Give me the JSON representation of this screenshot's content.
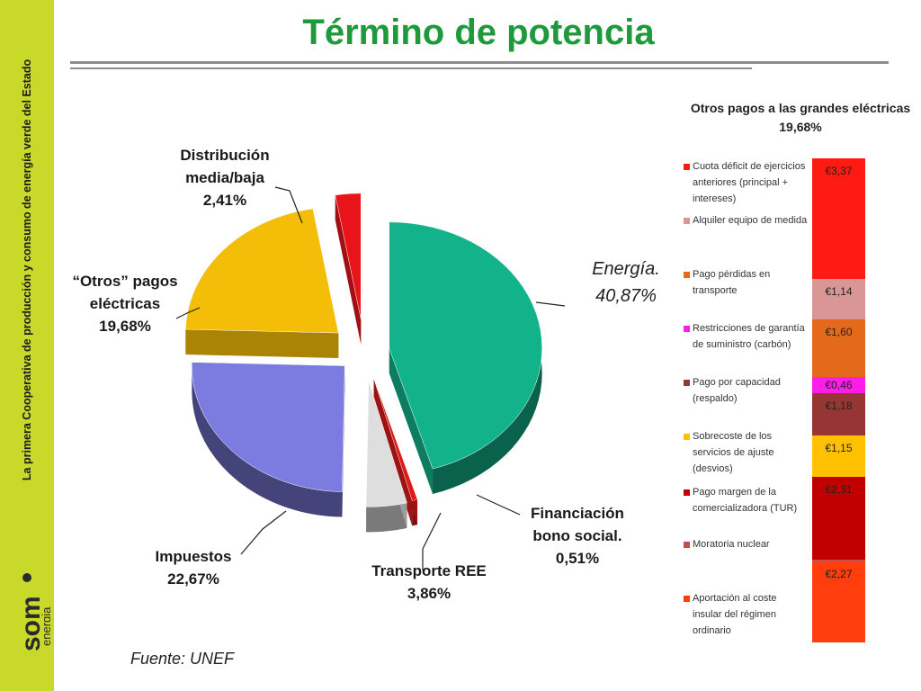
{
  "sidebar": {
    "tagline": "La primera Cooperativa de producción y consumo de energía verde del Estado",
    "logo_text": "som",
    "logo_subtext": "energia",
    "color": "#c9d92a"
  },
  "title": "Término de potencia",
  "source": "Fuente: UNEF",
  "chart_data": [
    {
      "type": "pie",
      "slices": [
        {
          "name": "Energía.",
          "value": 40.87,
          "label": "40,87%",
          "color": "#12b38a"
        },
        {
          "name": "Financiación bono social.",
          "value": 0.51,
          "label": "0,51%",
          "color": "#e01a1a"
        },
        {
          "name": "Transporte REE",
          "value": 3.86,
          "label": "3,86%",
          "color": "#dedede"
        },
        {
          "name": "Impuestos",
          "value": 22.67,
          "label": "22,67%",
          "color": "#7b7be0"
        },
        {
          "name": "“Otros” pagos eléctricas",
          "value": 19.68,
          "label": "19,68%",
          "color": "#f4bd08"
        },
        {
          "name": "Distribución media/baja",
          "value": 2.41,
          "label": "2,41%",
          "color": "#e8141a"
        }
      ]
    },
    {
      "type": "bar",
      "title": "Otros pagos a las grandes eléctricas",
      "subtitle": "19,68%",
      "stacked": true,
      "segments": [
        {
          "name": "Cuota déficit de ejercicios anteriores (principal + intereses)",
          "value": 3.37,
          "label": "€3,37",
          "color": "#ff1a12"
        },
        {
          "name": "Alquiler equipo de medida",
          "value": 1.14,
          "label": "€1,14",
          "color": "#d99694"
        },
        {
          "name": "Pago pérdidas en transporte",
          "value": 1.6,
          "label": "€1,60",
          "color": "#e4691b"
        },
        {
          "name": "Restricciones de garantía de suministro (carbón)",
          "value": 0.46,
          "label": "€0,46",
          "color": "#ff1ee8"
        },
        {
          "name": "Pago por capacidad (respaldo)",
          "value": 1.18,
          "label": "€1,18",
          "color": "#963634"
        },
        {
          "name": "Sobrecoste de los servicios de ajuste (desvios)",
          "value": 1.15,
          "label": "€1,15",
          "color": "#ffc000"
        },
        {
          "name": "Pago margen de la comercializadora (TUR)",
          "value": 2.31,
          "label": "€2,31",
          "color": "#c00000"
        },
        {
          "name": "Moratoria nuclear",
          "value": 0.05,
          "label": "",
          "color": "#c0504d"
        },
        {
          "name": "Aportación al coste insular del régimen ordinario",
          "value": 2.27,
          "label": "€2,27",
          "color": "#ff3d0d"
        }
      ]
    }
  ]
}
